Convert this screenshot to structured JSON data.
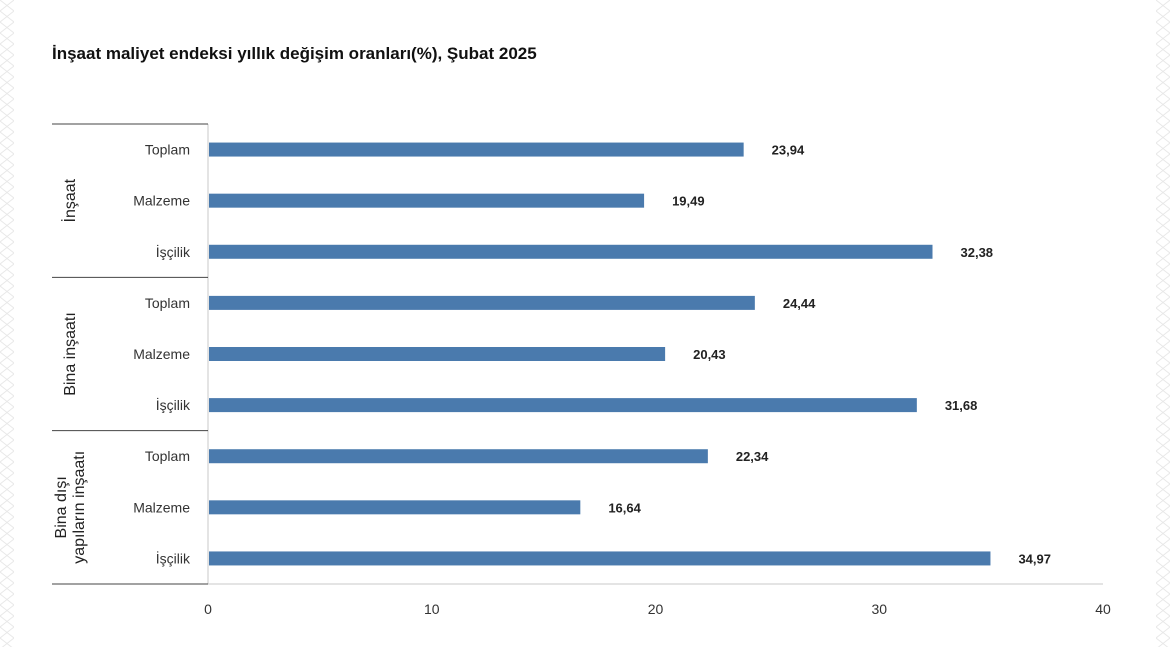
{
  "colors": {
    "bar": "#4a7aad",
    "axis": "#c8c8c8",
    "text": "#333333",
    "background": "#ffffff"
  },
  "chart_data": {
    "type": "bar",
    "orientation": "horizontal",
    "title": "İnşaat maliyet endeksi yıllık değişim oranları(%), Şubat 2025",
    "xlim": [
      0,
      40
    ],
    "xticks": [
      0,
      10,
      20,
      30,
      40
    ],
    "grid": false,
    "legend": "none",
    "groups": [
      {
        "name": "İnşaat",
        "name_lines": [
          "İnşaat"
        ],
        "categories": [
          "Toplam",
          "Malzeme",
          "İşçilik"
        ],
        "values": [
          23.94,
          19.49,
          32.38
        ],
        "value_labels": [
          "23,94",
          "19,49",
          "32,38"
        ]
      },
      {
        "name": "Bina inşaatı",
        "name_lines": [
          "Bina inşaatı"
        ],
        "categories": [
          "Toplam",
          "Malzeme",
          "İşçilik"
        ],
        "values": [
          24.44,
          20.43,
          31.68
        ],
        "value_labels": [
          "24,44",
          "20,43",
          "31,68"
        ]
      },
      {
        "name": "Bina dışı yapıların inşaatı",
        "name_lines": [
          "Bina dışı",
          "yapıların inşaatı"
        ],
        "categories": [
          "Toplam",
          "Malzeme",
          "İşçilik"
        ],
        "values": [
          22.34,
          16.64,
          34.97
        ],
        "value_labels": [
          "22,34",
          "16,64",
          "34,97"
        ]
      }
    ]
  }
}
